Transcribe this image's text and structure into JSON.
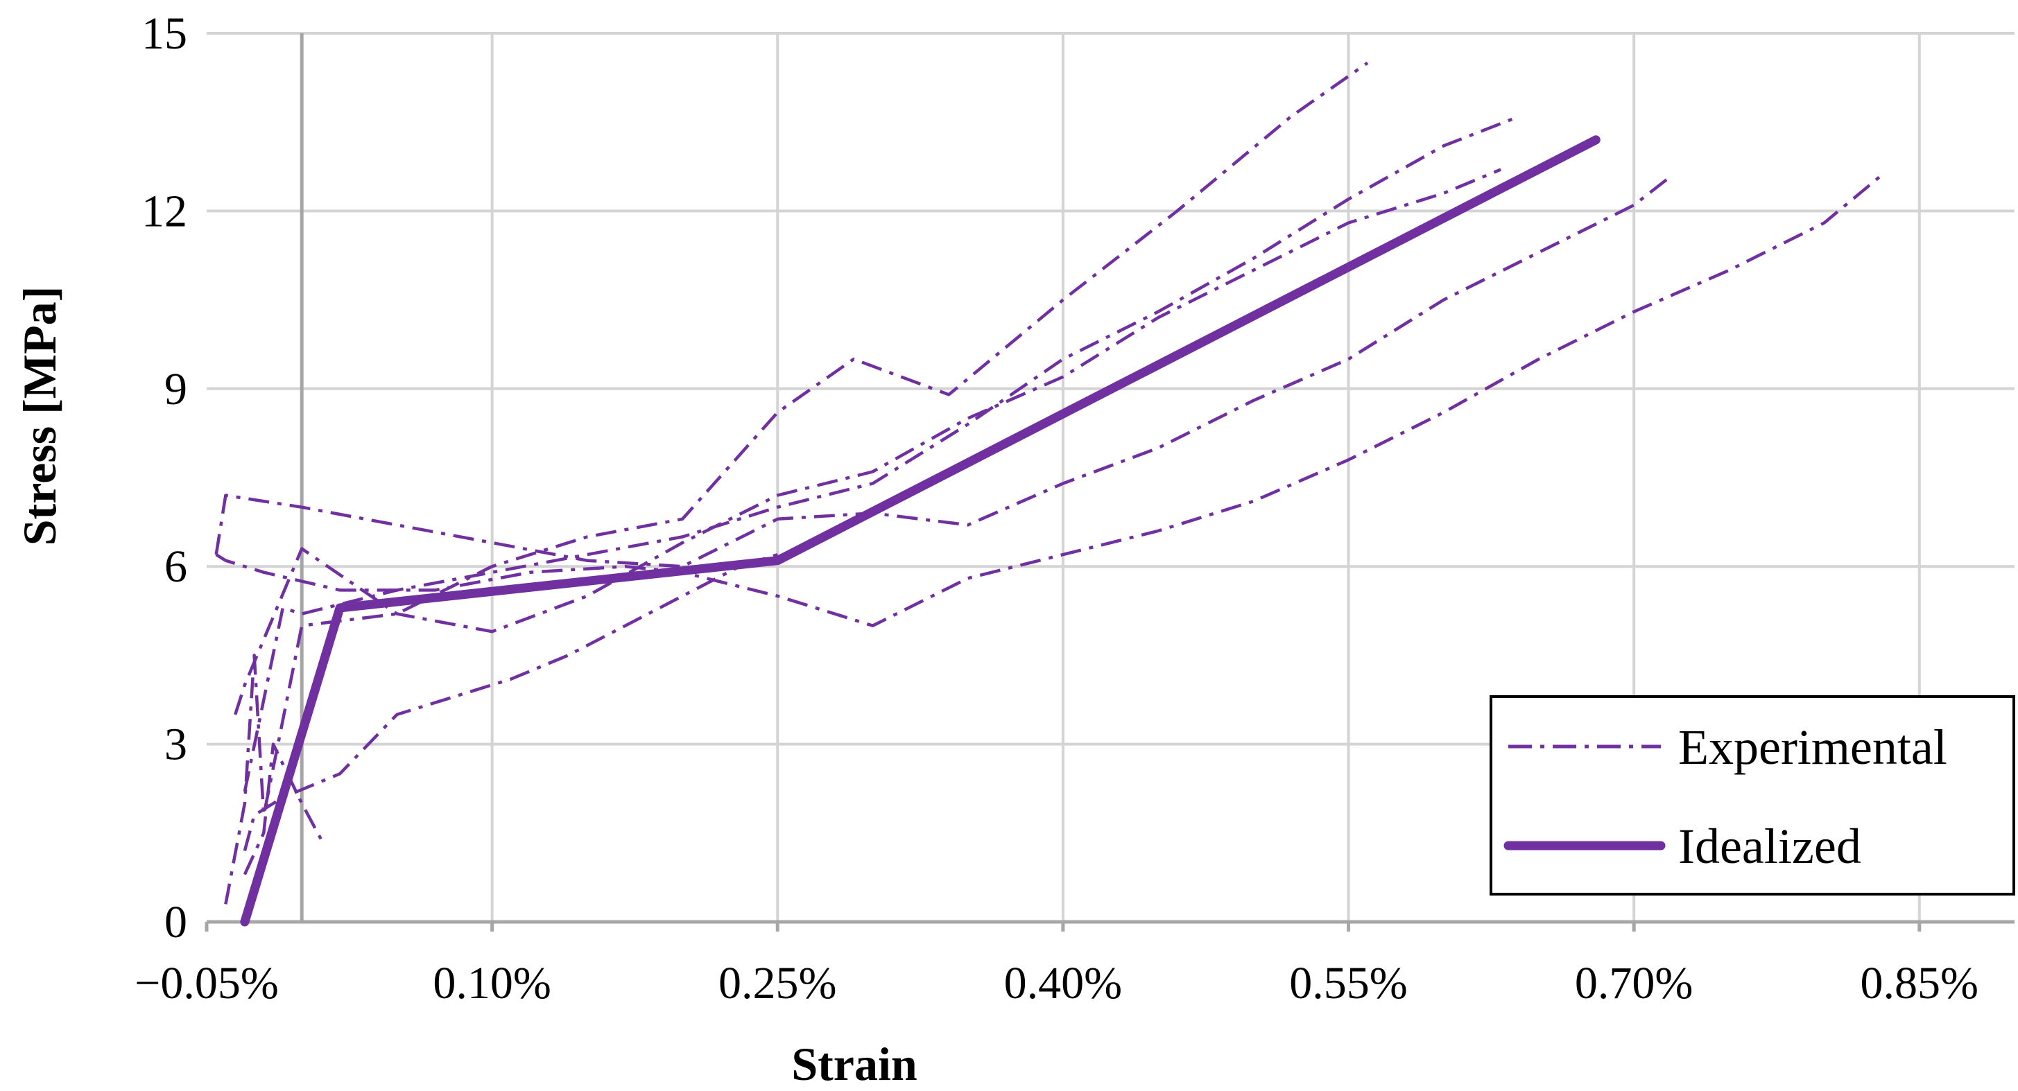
{
  "chart_data": {
    "type": "line",
    "xlabel": "Strain",
    "ylabel": "Stress [MPa]",
    "x_unit": "%",
    "xlim": [
      -0.05,
      0.9
    ],
    "ylim": [
      0,
      15
    ],
    "x_ticks": [
      -0.05,
      0.1,
      0.25,
      0.4,
      0.55,
      0.7,
      0.85
    ],
    "x_tick_labels": [
      "−0.05%",
      "0.10%",
      "0.25%",
      "0.40%",
      "0.55%",
      "0.70%",
      "0.85%"
    ],
    "y_ticks": [
      0,
      3,
      6,
      9,
      12,
      15
    ],
    "y_tick_labels": [
      "0",
      "3",
      "6",
      "9",
      "12",
      "15"
    ],
    "grid": true,
    "legend_position": "bottom-right",
    "color": "#7030a0",
    "legend": [
      {
        "label": "Experimental",
        "style": "dash-dot"
      },
      {
        "label": "Idealized",
        "style": "solid"
      }
    ],
    "series": [
      {
        "name": "Experimental",
        "style": "dash-dot",
        "x": [
          -0.04,
          -0.03,
          -0.025,
          -0.02,
          0.0,
          0.05,
          0.1,
          0.15,
          0.2,
          0.25,
          0.29,
          0.34,
          0.4,
          0.46,
          0.52,
          0.56
        ],
        "y": [
          0.3,
          2.0,
          4.5,
          1.8,
          5.0,
          5.2,
          6.0,
          6.5,
          6.8,
          8.6,
          9.5,
          8.9,
          10.5,
          12.0,
          13.6,
          14.5
        ]
      },
      {
        "name": "Experimental",
        "style": "dash-dot",
        "x": [
          -0.03,
          -0.01,
          0.0,
          0.05,
          0.1,
          0.15,
          0.2,
          0.25,
          0.3,
          0.35,
          0.4,
          0.45,
          0.5,
          0.55,
          0.6,
          0.64
        ],
        "y": [
          2.2,
          5.3,
          5.2,
          5.6,
          5.9,
          6.2,
          6.5,
          7.0,
          7.4,
          8.4,
          9.5,
          10.3,
          11.2,
          12.2,
          13.1,
          13.6
        ]
      },
      {
        "name": "Experimental",
        "style": "dash-dot",
        "x": [
          -0.035,
          -0.03,
          0.0,
          0.05,
          0.1,
          0.15,
          0.2,
          0.25,
          0.3,
          0.35,
          0.4,
          0.45,
          0.5,
          0.55,
          0.6,
          0.63
        ],
        "y": [
          3.5,
          4.0,
          6.3,
          5.2,
          4.9,
          5.5,
          6.4,
          7.2,
          7.6,
          8.5,
          9.2,
          10.2,
          11.0,
          11.8,
          12.3,
          12.7
        ]
      },
      {
        "name": "Experimental",
        "style": "dash-dot",
        "x": [
          -0.045,
          -0.04,
          0.0,
          0.05,
          0.1,
          0.15,
          0.2,
          0.25,
          0.3,
          0.35,
          0.4,
          0.45,
          0.5,
          0.55,
          0.6,
          0.65,
          0.7,
          0.72
        ],
        "y": [
          6.2,
          7.2,
          7.0,
          6.7,
          6.4,
          6.1,
          6.0,
          6.8,
          6.9,
          6.7,
          7.4,
          8.0,
          8.8,
          9.5,
          10.5,
          11.3,
          12.1,
          12.6
        ]
      },
      {
        "name": "Experimental",
        "style": "dash-dot",
        "x": [
          -0.045,
          -0.04,
          -0.02,
          0.02,
          0.07,
          0.12,
          0.17,
          0.2,
          0.25,
          0.3,
          0.35,
          0.4,
          0.45,
          0.5,
          0.55,
          0.6,
          0.65,
          0.7,
          0.75,
          0.8,
          0.83
        ],
        "y": [
          6.2,
          6.1,
          5.9,
          5.6,
          5.6,
          5.9,
          6.0,
          5.9,
          5.5,
          5.0,
          5.8,
          6.2,
          6.6,
          7.1,
          7.8,
          8.6,
          9.5,
          10.3,
          11.0,
          11.8,
          12.6
        ]
      },
      {
        "name": "Experimental",
        "style": "dash-dot",
        "x": [
          -0.03,
          -0.025,
          -0.01,
          0.02,
          0.05,
          0.08,
          0.11,
          0.14,
          0.17,
          0.2,
          0.23,
          0.25
        ],
        "y": [
          1.2,
          1.8,
          2.1,
          2.5,
          3.5,
          3.8,
          4.1,
          4.5,
          5.0,
          5.5,
          6.0,
          6.2
        ]
      },
      {
        "name": "Experimental",
        "style": "dash-dot",
        "x": [
          -0.03,
          -0.02,
          -0.015,
          0.0,
          0.01
        ],
        "y": [
          0.8,
          1.5,
          3.0,
          2.0,
          1.4
        ]
      },
      {
        "name": "Idealized",
        "style": "solid",
        "x": [
          -0.03,
          0.02,
          0.25,
          0.68
        ],
        "y": [
          0.0,
          5.3,
          6.1,
          13.2
        ]
      }
    ]
  }
}
